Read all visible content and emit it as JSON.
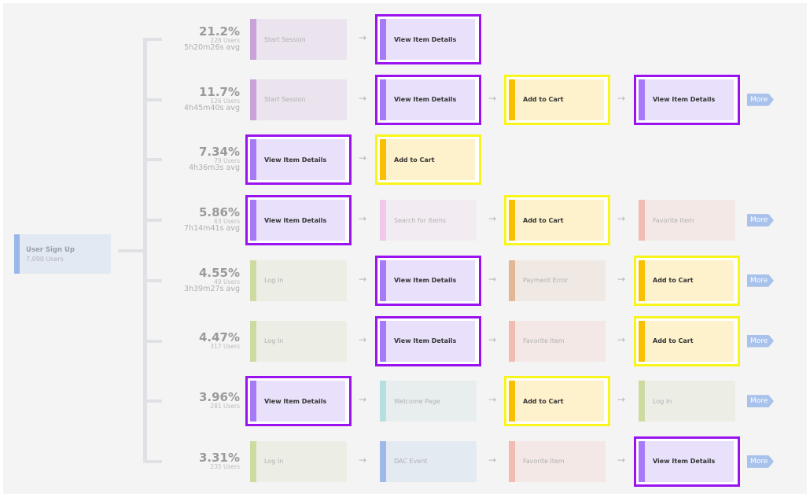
{
  "root": {
    "label": "User Sign Up",
    "users": "7,090 Users"
  },
  "more_label": "More",
  "styles": {
    "view_item": {
      "bg": "#e9e0fb",
      "bar": "#a77bf7",
      "outline": "#9b12f0"
    },
    "add_to_cart": {
      "bg": "#fef2cc",
      "bar": "#f8c000",
      "outline": "#f7f51a"
    },
    "start_session": {
      "bg": "#ebe3ee",
      "bar": "#c8a2d8"
    },
    "search": {
      "bg": "#f3ebf2",
      "bar": "#efc8ea"
    },
    "log_in": {
      "bg": "#eceee6",
      "bar": "#cddba0"
    },
    "payment_error": {
      "bg": "#f0e9e3",
      "bar": "#e1b795"
    },
    "favorite": {
      "bg": "#f3e8e6",
      "bar": "#f1bdb2"
    },
    "welcome": {
      "bg": "#e8eeee",
      "bar": "#b5e0e0"
    },
    "dac": {
      "bg": "#e4eaf2",
      "bar": "#9fb8ea"
    }
  },
  "rows": [
    {
      "percent": "21.2%",
      "users": "228 Users",
      "avg": "5h20m26s avg",
      "more": false,
      "steps": [
        {
          "label": "Start Session",
          "type": "start_session",
          "highlight": false
        },
        {
          "label": "View Item Details",
          "type": "view_item",
          "highlight": true
        }
      ]
    },
    {
      "percent": "11.7%",
      "users": "126 Users",
      "avg": "4h45m40s avg",
      "more": true,
      "steps": [
        {
          "label": "Start Session",
          "type": "start_session",
          "highlight": false
        },
        {
          "label": "View Item Details",
          "type": "view_item",
          "highlight": true
        },
        {
          "label": "Add to Cart",
          "type": "add_to_cart",
          "highlight": true
        },
        {
          "label": "View Item Details",
          "type": "view_item",
          "highlight": true
        }
      ]
    },
    {
      "percent": "7.34%",
      "users": "79 Users",
      "avg": "4h36m3s avg",
      "more": false,
      "steps": [
        {
          "label": "View Item Details",
          "type": "view_item",
          "highlight": true
        },
        {
          "label": "Add to Cart",
          "type": "add_to_cart",
          "highlight": true
        }
      ]
    },
    {
      "percent": "5.86%",
      "users": "63 Users",
      "avg": "7h14m41s avg",
      "more": true,
      "steps": [
        {
          "label": "View Item Details",
          "type": "view_item",
          "highlight": true
        },
        {
          "label": "Search for Items",
          "type": "search",
          "highlight": false
        },
        {
          "label": "Add to Cart",
          "type": "add_to_cart",
          "highlight": true
        },
        {
          "label": "Favorite Item",
          "type": "favorite",
          "highlight": false
        }
      ]
    },
    {
      "percent": "4.55%",
      "users": "49 Users",
      "avg": "3h39m27s avg",
      "more": true,
      "steps": [
        {
          "label": "Log In",
          "type": "log_in",
          "highlight": false
        },
        {
          "label": "View Item Details",
          "type": "view_item",
          "highlight": true
        },
        {
          "label": "Payment Error",
          "type": "payment_error",
          "highlight": false
        },
        {
          "label": "Add to Cart",
          "type": "add_to_cart",
          "highlight": true
        }
      ]
    },
    {
      "percent": "4.47%",
      "users": "317 Users",
      "avg": null,
      "more": true,
      "steps": [
        {
          "label": "Log In",
          "type": "log_in",
          "highlight": false
        },
        {
          "label": "View Item Details",
          "type": "view_item",
          "highlight": true
        },
        {
          "label": "Favorite Item",
          "type": "favorite",
          "highlight": false
        },
        {
          "label": "Add to Cart",
          "type": "add_to_cart",
          "highlight": true
        }
      ]
    },
    {
      "percent": "3.96%",
      "users": "281 Users",
      "avg": null,
      "more": true,
      "steps": [
        {
          "label": "View Item Details",
          "type": "view_item",
          "highlight": true
        },
        {
          "label": "Welcome Page",
          "type": "welcome",
          "highlight": false
        },
        {
          "label": "Add to Cart",
          "type": "add_to_cart",
          "highlight": true
        },
        {
          "label": "Log In",
          "type": "log_in",
          "highlight": false
        }
      ]
    },
    {
      "percent": "3.31%",
      "users": "235 Users",
      "avg": null,
      "more": true,
      "steps": [
        {
          "label": "Log In",
          "type": "log_in",
          "highlight": false
        },
        {
          "label": "DAC Event",
          "type": "dac",
          "highlight": false
        },
        {
          "label": "Favorite Item",
          "type": "favorite",
          "highlight": false
        },
        {
          "label": "View Item Details",
          "type": "view_item",
          "highlight": true
        }
      ]
    }
  ]
}
